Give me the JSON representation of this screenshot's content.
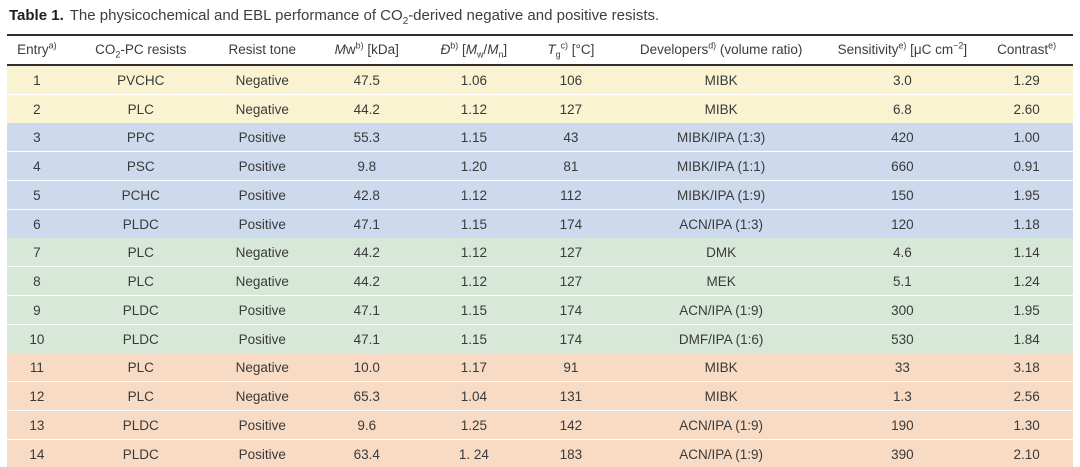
{
  "caption": {
    "prefix": "Table 1.",
    "text_html": "The physicochemical and EBL performance of CO<sub>2</sub>-derived negative and positive resists."
  },
  "table": {
    "columns": [
      {
        "key": "entry",
        "label_html": "Entry<sup>a)</sup>",
        "width": "5.6%"
      },
      {
        "key": "resists",
        "label_html": "CO<sub>2</sub>-PC resists",
        "width": "13.9%"
      },
      {
        "key": "tone",
        "label_html": "Resist tone",
        "width": "8.9%"
      },
      {
        "key": "mw",
        "label_html": "<i>M</i>w<sup>b)</sup> [kDa]",
        "width": "10.7%"
      },
      {
        "key": "dispersity",
        "label_html": "<i>Đ</i><sup>b)</sup> [<i>M</i><sub>w</sub>/<i>M</i><sub>n</sub>]",
        "width": "9.4%"
      },
      {
        "key": "tg",
        "label_html": "<i>T</i><sub>g</sub><sup>c)</sup> [°C]",
        "width": "8.8%"
      },
      {
        "key": "developers",
        "label_html": "Developers<sup>d)</sup> (volume ratio)",
        "width": "19.4%"
      },
      {
        "key": "sensitivity",
        "label_html": "Sensitivity<sup>e)</sup> [μC cm<sup>−2</sup>]",
        "width": "14.6%"
      },
      {
        "key": "contrast",
        "label_html": "Contrast<sup>e)</sup>",
        "width": "8.7%"
      }
    ],
    "groups": [
      {
        "name": "band-yellow",
        "bg": "#faf3d2",
        "rows": [
          [
            "1",
            "PVCHC",
            "Negative",
            "47.5",
            "1.06",
            "106",
            "MIBK",
            "3.0",
            "1.29"
          ],
          [
            "2",
            "PLC",
            "Negative",
            "44.2",
            "1.12",
            "127",
            "MIBK",
            "6.8",
            "2.60"
          ]
        ]
      },
      {
        "name": "band-blue",
        "bg": "#cdd9ec",
        "rows": [
          [
            "3",
            "PPC",
            "Positive",
            "55.3",
            "1.15",
            "43",
            "MIBK/IPA (1:3)",
            "420",
            "1.00"
          ],
          [
            "4",
            "PSC",
            "Positive",
            "9.8",
            "1.20",
            "81",
            "MIBK/IPA (1:1)",
            "660",
            "0.91"
          ],
          [
            "5",
            "PCHC",
            "Positive",
            "42.8",
            "1.12",
            "112",
            "MIBK/IPA (1:9)",
            "150",
            "1.95"
          ],
          [
            "6",
            "PLDC",
            "Positive",
            "47.1",
            "1.15",
            "174",
            "ACN/IPA (1:3)",
            "120",
            "1.18"
          ]
        ]
      },
      {
        "name": "band-green",
        "bg": "#d7e8d9",
        "rows": [
          [
            "7",
            "PLC",
            "Negative",
            "44.2",
            "1.12",
            "127",
            "DMK",
            "4.6",
            "1.14"
          ],
          [
            "8",
            "PLC",
            "Negative",
            "44.2",
            "1.12",
            "127",
            "MEK",
            "5.1",
            "1.24"
          ],
          [
            "9",
            "PLDC",
            "Positive",
            "47.1",
            "1.15",
            "174",
            "ACN/IPA (1:9)",
            "300",
            "1.95"
          ],
          [
            "10",
            "PLDC",
            "Positive",
            "47.1",
            "1.15",
            "174",
            "DMF/IPA (1:6)",
            "530",
            "1.84"
          ]
        ]
      },
      {
        "name": "band-orange",
        "bg": "#f8dbc5",
        "rows": [
          [
            "11",
            "PLC",
            "Negative",
            "10.0",
            "1.17",
            "91",
            "MIBK",
            "33",
            "3.18"
          ],
          [
            "12",
            "PLC",
            "Negative",
            "65.3",
            "1.04",
            "131",
            "MIBK",
            "1.3",
            "2.56"
          ],
          [
            "13",
            "PLDC",
            "Positive",
            "9.6",
            "1.25",
            "142",
            "ACN/IPA (1:9)",
            "190",
            "1.30"
          ],
          [
            "14",
            "PLDC",
            "Positive",
            "63.4",
            "1. 24",
            "183",
            "ACN/IPA (1:9)",
            "390",
            "2.10"
          ]
        ]
      }
    ]
  },
  "colors": {
    "rule": "#2f2f2f",
    "text": "#3a3a3a",
    "band_yellow": "#faf3d2",
    "band_blue": "#cdd9ec",
    "band_green": "#d7e8d9",
    "band_orange": "#f8dbc5"
  }
}
